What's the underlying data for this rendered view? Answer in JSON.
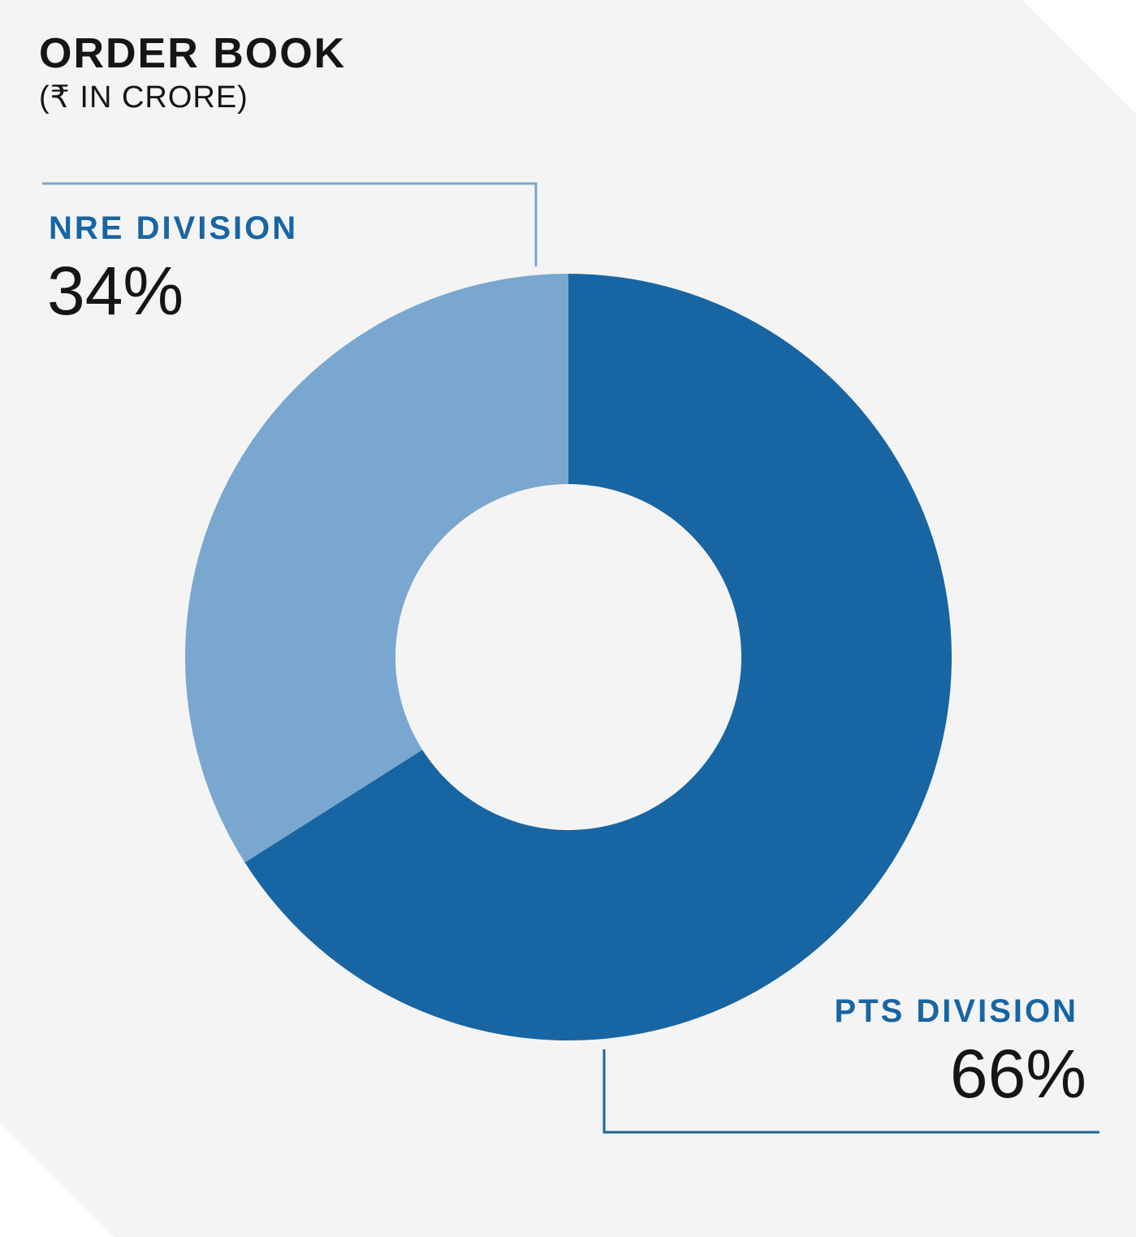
{
  "header": {
    "title": "ORDER BOOK",
    "subtitle": "(₹ IN CRORE)"
  },
  "colors": {
    "background": "#f4f4f4",
    "label_text": "#1865a3",
    "value_text": "#151515"
  },
  "chart_data": {
    "type": "pie",
    "title": "ORDER BOOK",
    "subtitle": "(₹ IN CRORE)",
    "donut": true,
    "unit": "%",
    "slices": [
      {
        "name": "PTS DIVISION",
        "value": 66,
        "display": "66%",
        "color": "#1865a3"
      },
      {
        "name": "NRE DIVISION",
        "value": 34,
        "display": "34%",
        "color": "#7aa7cf"
      }
    ]
  }
}
